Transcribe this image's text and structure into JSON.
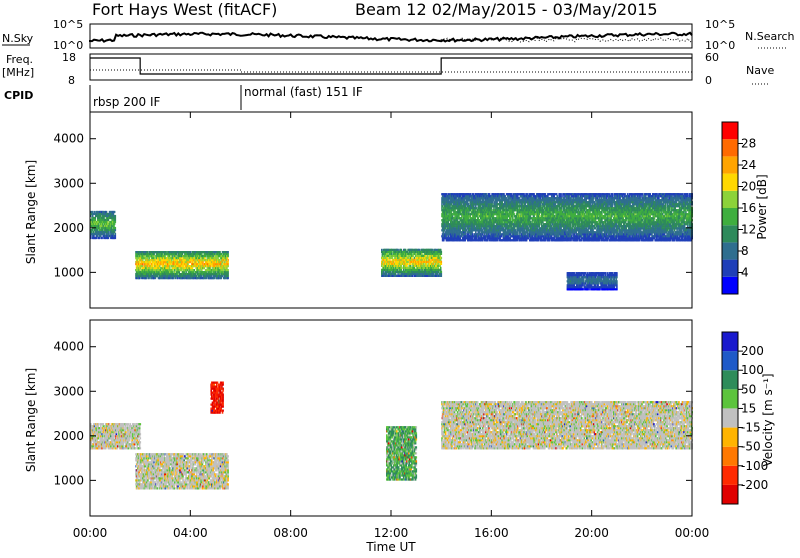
{
  "header": {
    "station": "Fort Hays West (fitACF)",
    "beam_date": "Beam 12 02/May/2015 - 03/May/2015"
  },
  "ancillary": {
    "nsky_label": "N.Sky",
    "nsearch_label": "N.Search",
    "freq_label_1": "Freq.",
    "freq_label_2": "[MHz]",
    "nave_label": "Nave",
    "cpid_label": "CPID",
    "nsky_ticks": [
      "10^5",
      "10^0"
    ],
    "nsearch_ticks": [
      "10^5",
      "10^0"
    ],
    "freq_ticks": [
      "18",
      "8"
    ],
    "nave_ticks": [
      "60",
      "0"
    ],
    "cpid_segments": [
      {
        "name": "rbsp 200 IF",
        "start_h": 0,
        "end_h": 6
      },
      {
        "name": "normal (fast) 151 IF",
        "start_h": 6,
        "end_h": 24
      }
    ]
  },
  "colorbars": {
    "power": {
      "label": "Power [dB]",
      "ticks": [
        "28",
        "24",
        "20",
        "16",
        "12",
        "8",
        "4"
      ],
      "colors": [
        "#0000ff",
        "#1f3fb8",
        "#2f6e8f",
        "#2e8a5b",
        "#3fae3f",
        "#8cd23a",
        "#ffd800",
        "#ffa400",
        "#ff6a00",
        "#ff0000"
      ]
    },
    "velocity": {
      "label": "Velocity [m s⁻¹]",
      "ticks": [
        "200",
        "100",
        "50",
        "15",
        "-15",
        "-50",
        "-100",
        "-200"
      ],
      "colors": [
        "#1a1acd",
        "#1f5ac8",
        "#2e8c5a",
        "#5cc43c",
        "#c0c0c0",
        "#ffb400",
        "#ff7800",
        "#ff2a00",
        "#e00000"
      ]
    }
  },
  "chart_data": [
    {
      "type": "heatmap",
      "panel": "power",
      "xlabel": "",
      "ylabel": "Slant Range [km]",
      "yticks": [
        "4000",
        "3000",
        "2000",
        "1000"
      ],
      "ylim": [
        200,
        4600
      ],
      "xlim": [
        0,
        24
      ],
      "regions": [
        {
          "t0": 0.0,
          "t1": 1.0,
          "r0": 1750,
          "r1": 2400,
          "peak_db": 18
        },
        {
          "t0": 1.8,
          "t1": 5.5,
          "r0": 850,
          "r1": 1500,
          "peak_db": 26
        },
        {
          "t0": 11.6,
          "t1": 14.0,
          "r0": 900,
          "r1": 1550,
          "peak_db": 25
        },
        {
          "t0": 14.0,
          "t1": 24.0,
          "r0": 1700,
          "r1": 2800,
          "peak_db": 16
        },
        {
          "t0": 19.0,
          "t1": 21.0,
          "r0": 600,
          "r1": 1000,
          "peak_db": 10
        }
      ]
    },
    {
      "type": "heatmap",
      "panel": "velocity",
      "xlabel": "Time UT",
      "ylabel": "Slant Range [km]",
      "xticks": [
        "00:00",
        "04:00",
        "08:00",
        "12:00",
        "16:00",
        "20:00",
        "00:00"
      ],
      "yticks": [
        "4000",
        "3000",
        "2000",
        "1000"
      ],
      "ylim": [
        200,
        4600
      ],
      "xlim": [
        0,
        24
      ],
      "regions": [
        {
          "t0": 0.0,
          "t1": 2.0,
          "r0": 1700,
          "r1": 2300,
          "velocity": 0
        },
        {
          "t0": 1.8,
          "t1": 5.5,
          "r0": 800,
          "r1": 1600,
          "velocity": 0
        },
        {
          "t0": 4.8,
          "t1": 5.3,
          "r0": 2500,
          "r1": 3200,
          "velocity": -200
        },
        {
          "t0": 11.8,
          "t1": 13.0,
          "r0": 1000,
          "r1": 2200,
          "velocity": 30
        },
        {
          "t0": 14.0,
          "t1": 24.0,
          "r0": 1700,
          "r1": 2800,
          "velocity": 0
        }
      ]
    }
  ]
}
